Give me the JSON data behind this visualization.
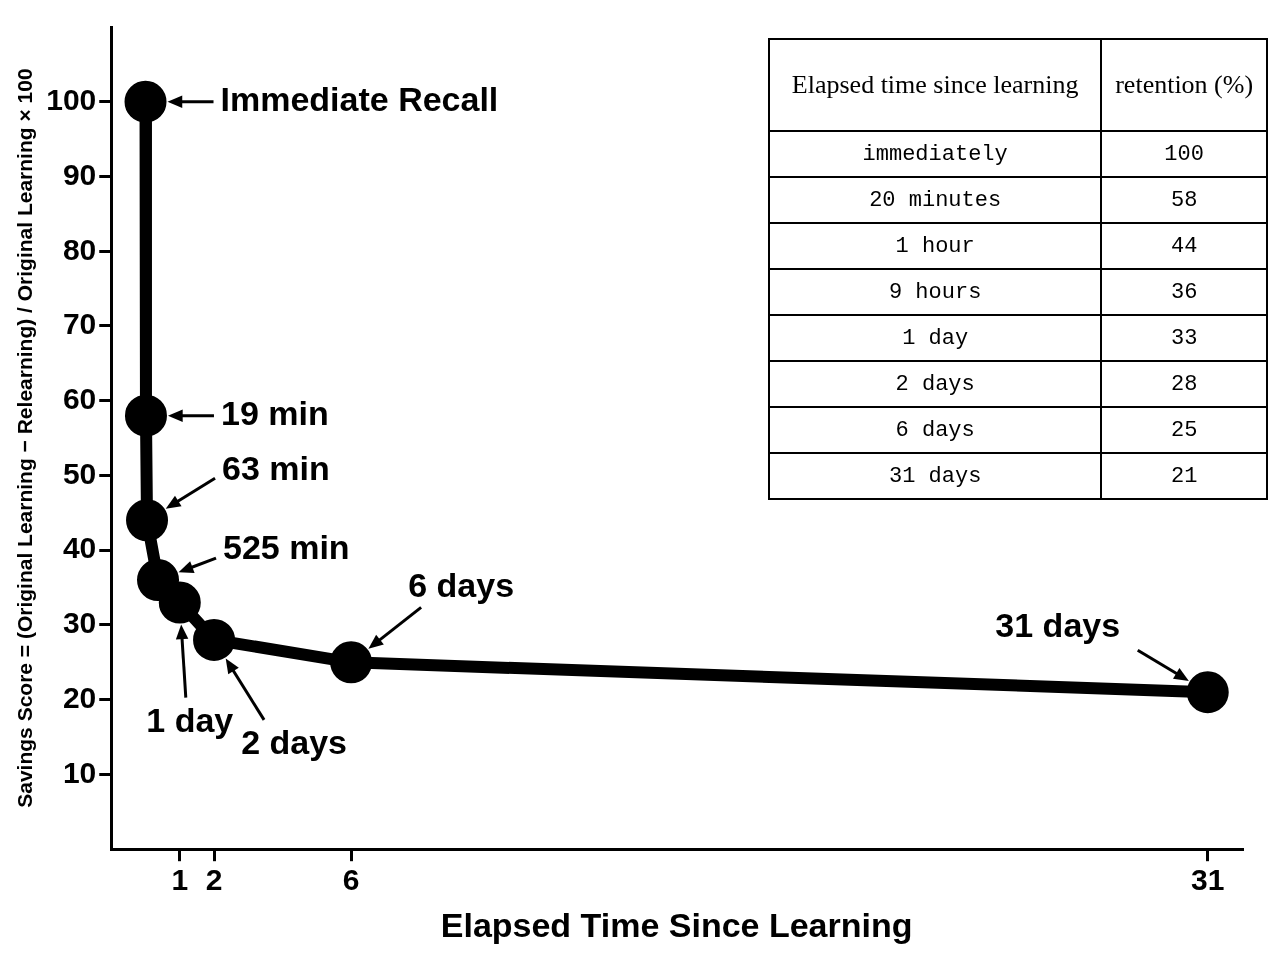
{
  "chart_data": {
    "type": "line",
    "xlabel": "Elapsed Time Since Learning",
    "ylabel": "Savings Score = (Original Learning − Relearning) / Original Learning × 100",
    "x": [
      0,
      0.0132,
      0.04375,
      0.3646,
      1,
      2,
      6,
      31
    ],
    "values": [
      100,
      58,
      44,
      36,
      33,
      28,
      25,
      21
    ],
    "color": "#000000",
    "marker": "circle",
    "line_style": "solid",
    "legend": false,
    "grid": false,
    "xlim": [
      -1,
      32
    ],
    "xticks": [
      1,
      2,
      6,
      31
    ],
    "ylim": [
      0,
      110
    ],
    "yticks": [
      10,
      20,
      30,
      40,
      50,
      60,
      70,
      80,
      90,
      100
    ],
    "annotations": [
      {
        "text": "Immediate Recall",
        "x": 0,
        "y": 100
      },
      {
        "text": "19 min",
        "x": 0.0132,
        "y": 58
      },
      {
        "text": "63 min",
        "x": 0.04375,
        "y": 44
      },
      {
        "text": "525 min",
        "x": 0.3646,
        "y": 36
      },
      {
        "text": "1 day",
        "x": 1,
        "y": 33
      },
      {
        "text": "2 days",
        "x": 2,
        "y": 28
      },
      {
        "text": "6 days",
        "x": 6,
        "y": 25
      },
      {
        "text": "31 days",
        "x": 31,
        "y": 21
      },
      "Elapsed time since learning",
      "retention (%)",
      "immediately",
      "100",
      "20 minutes",
      "58",
      "1 hour",
      "44",
      "9 hours",
      "36",
      "1 day",
      "33",
      "2 days",
      "28",
      "6 days",
      "25",
      "31 days",
      "21"
    ]
  }
}
